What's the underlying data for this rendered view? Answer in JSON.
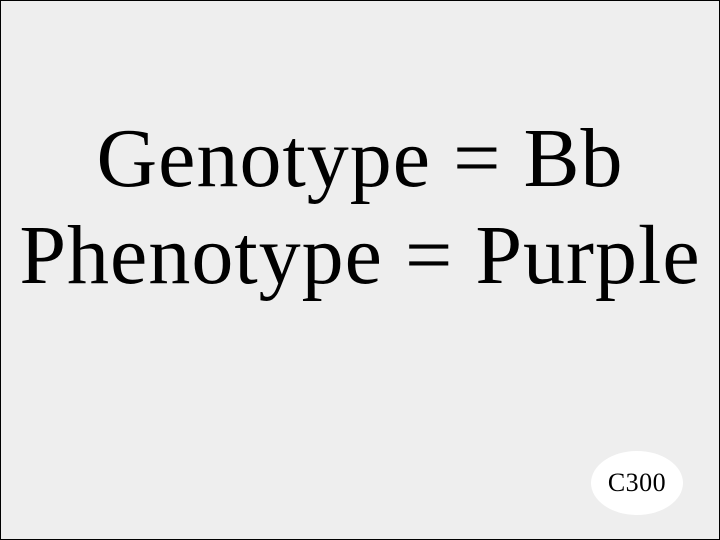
{
  "slide": {
    "background_color": "#eeeeee",
    "border_color": "#000000",
    "text_color": "#000000",
    "font_family": "Papyrus, Segoe Print, Bradley Hand, cursive, serif",
    "main": {
      "line1": "Genotype = Bb",
      "line2": "Phenotype = Purple",
      "font_size": 84,
      "line_height": 1.15
    },
    "badge": {
      "label": "C300",
      "background_color": "#ffffff",
      "font_size": 26,
      "width": 92,
      "height": 64
    }
  }
}
